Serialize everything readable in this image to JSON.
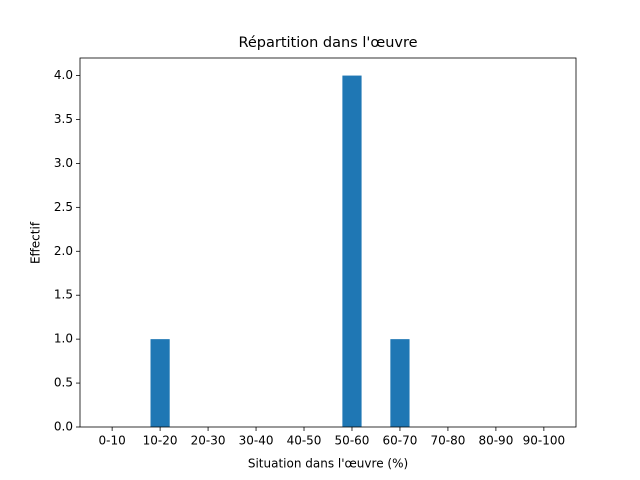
{
  "chart_data": {
    "type": "bar",
    "title": "Répartition dans l'œuvre",
    "x_label": "Situation dans l'œuvre (%)",
    "y_label": "Effectif",
    "categories": [
      "0-10",
      "10-20",
      "20-30",
      "30-40",
      "40-50",
      "50-60",
      "60-70",
      "70-80",
      "80-90",
      "90-100"
    ],
    "values": [
      0,
      1,
      0,
      0,
      0,
      4,
      1,
      0,
      0,
      0
    ],
    "color": "#1f77b4",
    "ylim": [
      0,
      4.2
    ],
    "yticks": [
      {
        "value": 0,
        "label": "0.0"
      },
      {
        "value": 0.5,
        "label": "0.5"
      },
      {
        "value": 1,
        "label": "1.0"
      },
      {
        "value": 1.5,
        "label": "1.5"
      },
      {
        "value": 2,
        "label": "2.0"
      },
      {
        "value": 2.5,
        "label": "2.5"
      },
      {
        "value": 3,
        "label": "3.0"
      },
      {
        "value": 3.5,
        "label": "3.5"
      },
      {
        "value": 4,
        "label": "4.0"
      }
    ]
  }
}
